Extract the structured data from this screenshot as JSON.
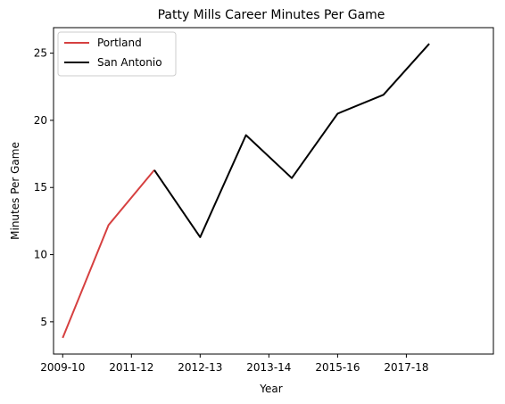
{
  "chart_data": {
    "type": "line",
    "title": "Patty Mills Career Minutes Per Game",
    "xlabel": "Year",
    "ylabel": "Minutes Per Game",
    "x_tick_labels": [
      "2009-10",
      "2011-12",
      "2012-13",
      "2013-14",
      "2015-16",
      "2017-18"
    ],
    "y_ticks": [
      5,
      10,
      15,
      20,
      25
    ],
    "xlim": [
      -0.2,
      9.4
    ],
    "ylim": [
      2.6,
      26.9
    ],
    "grid": false,
    "legend_position": "top-left",
    "series": [
      {
        "name": "Portland",
        "color": "#d64040",
        "x": [
          0,
          1,
          2
        ],
        "y": [
          3.8,
          12.2,
          16.3
        ]
      },
      {
        "name": "San Antonio",
        "color": "#000000",
        "x": [
          2,
          3,
          4,
          5,
          6,
          7,
          8
        ],
        "y": [
          16.3,
          11.3,
          18.9,
          15.7,
          20.5,
          21.9,
          25.7
        ]
      }
    ]
  }
}
